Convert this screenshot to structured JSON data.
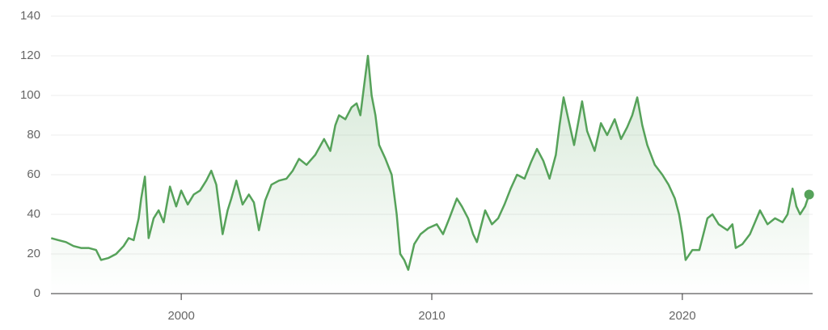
{
  "chart_data": {
    "type": "line",
    "color": "#56a25a",
    "grid": true,
    "area": true,
    "end_marker": true,
    "xlim": [
      1994.8,
      2025.2
    ],
    "xticks": [
      2000,
      2010,
      2020
    ],
    "ylim": [
      0,
      140
    ],
    "yticks": [
      0,
      20,
      40,
      60,
      80,
      100,
      120,
      140
    ],
    "x": [
      1994.81,
      1995.1,
      1995.4,
      1995.7,
      1996.0,
      1996.3,
      1996.6,
      1996.8,
      1997.1,
      1997.4,
      1997.7,
      1997.9,
      1998.1,
      1998.3,
      1998.4,
      1998.55,
      1998.7,
      1998.9,
      1999.1,
      1999.3,
      1999.55,
      1999.8,
      2000.0,
      2000.26,
      2000.5,
      2000.75,
      2001.0,
      2001.2,
      2001.4,
      2001.55,
      2001.65,
      2001.85,
      2002.0,
      2002.2,
      2002.45,
      2002.7,
      2002.9,
      2003.1,
      2003.35,
      2003.6,
      2003.9,
      2004.2,
      2004.45,
      2004.7,
      2005.0,
      2005.35,
      2005.7,
      2005.95,
      2006.15,
      2006.3,
      2006.55,
      2006.8,
      2007.0,
      2007.15,
      2007.3,
      2007.45,
      2007.6,
      2007.75,
      2007.9,
      2008.15,
      2008.4,
      2008.6,
      2008.74,
      2008.9,
      2009.06,
      2009.3,
      2009.55,
      2009.85,
      2010.2,
      2010.45,
      2010.7,
      2011.0,
      2011.2,
      2011.45,
      2011.65,
      2011.8,
      2012.13,
      2012.4,
      2012.65,
      2012.9,
      2013.15,
      2013.4,
      2013.7,
      2013.95,
      2014.2,
      2014.45,
      2014.7,
      2014.95,
      2015.1,
      2015.26,
      2015.45,
      2015.68,
      2016.0,
      2016.2,
      2016.5,
      2016.75,
      2017.0,
      2017.3,
      2017.55,
      2017.8,
      2018.0,
      2018.2,
      2018.4,
      2018.6,
      2018.9,
      2019.2,
      2019.45,
      2019.7,
      2019.87,
      2020.0,
      2020.13,
      2020.4,
      2020.68,
      2021.0,
      2021.2,
      2021.45,
      2021.8,
      2022.0,
      2022.13,
      2022.4,
      2022.7,
      2023.1,
      2023.4,
      2023.7,
      2024.0,
      2024.2,
      2024.4,
      2024.55,
      2024.7,
      2024.9,
      2025.06
    ],
    "values": [
      28,
      27,
      26,
      24,
      23,
      23,
      22,
      17,
      18,
      20,
      24,
      28,
      27,
      38,
      48,
      59,
      28,
      38,
      42,
      36,
      54,
      44,
      52,
      45,
      50,
      52,
      57,
      62,
      55,
      40,
      30,
      42,
      48,
      57,
      45,
      50,
      46,
      32,
      47,
      55,
      57,
      58,
      62,
      68,
      65,
      70,
      78,
      72,
      85,
      90,
      88,
      94,
      96,
      90,
      105,
      120,
      100,
      90,
      75,
      68,
      60,
      40,
      20,
      17,
      12,
      25,
      30,
      33,
      35,
      30,
      38,
      48,
      44,
      38,
      30,
      26,
      42,
      35,
      38,
      45,
      53,
      60,
      58,
      66,
      73,
      67,
      58,
      70,
      85,
      99,
      88,
      75,
      97,
      82,
      72,
      86,
      80,
      88,
      78,
      84,
      90,
      99,
      85,
      75,
      65,
      60,
      55,
      48,
      40,
      30,
      17,
      22,
      22,
      38,
      40,
      35,
      32,
      35,
      23,
      25,
      30,
      42,
      35,
      38,
      36,
      40,
      53,
      44,
      40,
      44,
      50
    ]
  }
}
